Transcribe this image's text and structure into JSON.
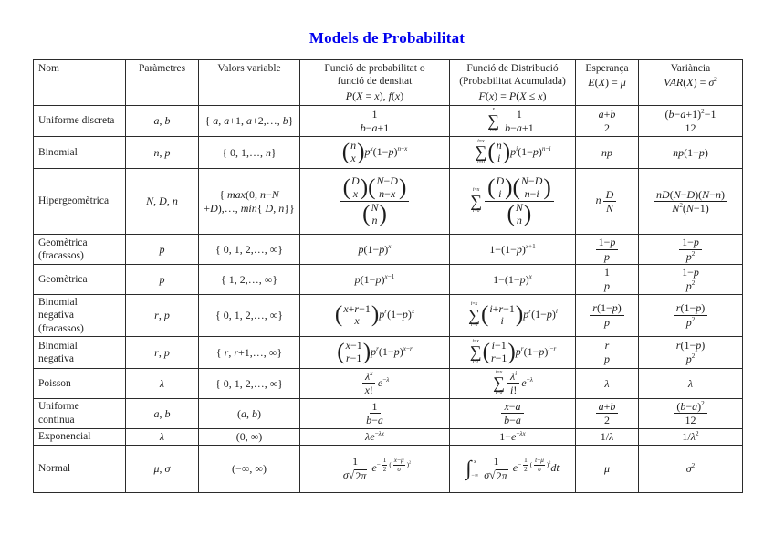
{
  "page": {
    "title": "Models de Probabilitat",
    "title_color": "#0000EE"
  },
  "table": {
    "headers": {
      "nom": "Nom",
      "parametres": "Paràmetres",
      "valors": "Valors variable",
      "pdf_label": "Funció de probabilitat o\nfunció de densitat",
      "pdf_formula": "P(X = x), f(x)",
      "cdf_label": "Funció de Distribució\n(Probabilitat Acumulada)",
      "cdf_formula": "F(x) = P(X ≤ x)",
      "mean_label": "Esperança",
      "mean_formula": "E(X) = μ",
      "var_label": "Variància",
      "var_formula": "VAR(X) = σ^{2}"
    },
    "rows": [
      {
        "name": "Uniforme discreta",
        "params": "a, b",
        "values": "\\lb a, a+1, a+2,…, b\\rb",
        "pdf": "\\frac{1}{b−a+1}",
        "cdf": "\\sum_{i=a}^{x}\\frac{1}{b−a+1}",
        "mean": "\\frac{a+b}{2}",
        "variance": "\\frac{(b−a+1)^{2}−1}{12}"
      },
      {
        "name": "Binomial",
        "params": "n, p",
        "values": "\\lb 0, 1,…, n\\rb",
        "pdf": "\\binom{n}{x}p^{x}(1−p)^{n−x}",
        "cdf": "\\sum_{i=0}^{i=x}\\binom{n}{i}p^{i}(1−p)^{n−i}",
        "mean": "np",
        "variance": "np(1−p)"
      },
      {
        "name": "Hipergeomètrica",
        "params": "N, D, n",
        "values": "\\lb max(0, n−N\n+D),…, min\\lb D, n\\rb\\rb",
        "pdf": "\\frac{\\binom{D}{x}\\binom{N−D}{n−x}}{\\binom{N}{n}}",
        "cdf": "\\sum_{i=0}^{i=x}\\frac{\\binom{D}{i}\\binom{N−D}{n−i}}{\\binom{N}{n}}",
        "mean": "n\\frac{D}{N}",
        "variance": "\\frac{nD(N−D)(N−n)}{N^{2}(N−1)}"
      },
      {
        "name": "Geomètrica\n(fracassos)",
        "params": "p",
        "values": "\\lb 0, 1, 2,…, ∞\\rb",
        "pdf": "p(1−p)^{x}",
        "cdf": "1−(1−p)^{x+1}",
        "mean": "\\frac{1−p}{p}",
        "variance": "\\frac{1−p}{p^{2}}"
      },
      {
        "name": "Geomètrica",
        "params": "p",
        "values": "\\lb 1, 2,…, ∞\\rb",
        "pdf": "p(1−p)^{x−1}",
        "cdf": "1−(1−p)^{x}",
        "mean": "\\frac{1}{p}",
        "variance": "\\frac{1−p}{p^{2}}"
      },
      {
        "name": "Binomial\nnegativa\n(fracassos)",
        "params": "r, p",
        "values": "\\lb 0, 1, 2,…, ∞\\rb",
        "pdf": "\\binom{x+r−1}{x}p^{r}(1−p)^{x}",
        "cdf": "\\sum_{i=0}^{i=x}\\binom{i+r−1}{i}p^{r}(1−p)^{i}",
        "mean": "\\frac{r(1−p)}{p}",
        "variance": "\\frac{r(1−p)}{p^{2}}"
      },
      {
        "name": "Binomial\nnegativa",
        "params": "r, p",
        "values": "\\lb r, r+1,…, ∞\\rb",
        "pdf": "\\binom{x−1}{r−1}p^{r}(1−p)^{x−r}",
        "cdf": "\\sum_{i=r}^{i=x}\\binom{i−1}{r−1}p^{r}(1−p)^{i−r}",
        "mean": "\\frac{r}{p}",
        "variance": "\\frac{r(1−p)}{p^{2}}"
      },
      {
        "name": "Poisson",
        "params": "λ",
        "values": "\\lb 0, 1, 2,…, ∞\\rb",
        "pdf": "\\frac{λ^{x}}{x!}e^{−λ}",
        "cdf": "\\sum_{i=0}^{i=x}\\frac{λ^{i}}{i!}e^{−λ}",
        "mean": "λ",
        "variance": "λ"
      },
      {
        "name": "Uniforme\ncontinua",
        "params": "a, b",
        "values": "(a, b)",
        "pdf": "\\frac{1}{b−a}",
        "cdf": "\\frac{x−a}{b−a}",
        "mean": "\\frac{a+b}{2}",
        "variance": "\\frac{(b−a)^{2}}{12}"
      },
      {
        "name": "Exponencial",
        "params": "λ",
        "values": "(0, ∞)",
        "pdf": "λe^{−λx}",
        "cdf": "1−e^{−λx}",
        "mean": "1/λ",
        "variance": "1/λ^{2}"
      },
      {
        "name": "Normal",
        "params": "μ, σ",
        "values": "(−∞, ∞)",
        "pdf": "\\frac{1}{σ\\sqrt{2π}}e^{−\\frac{1}{2}(\\frac{x−μ}{σ})^{2}}",
        "cdf": "\\int_{−∞}^{x}\\frac{1}{σ\\sqrt{2π}}e^{−\\frac{1}{2}(\\frac{t−μ}{σ})^{2}}dt",
        "mean": "μ",
        "variance": "σ^{2}"
      }
    ]
  }
}
